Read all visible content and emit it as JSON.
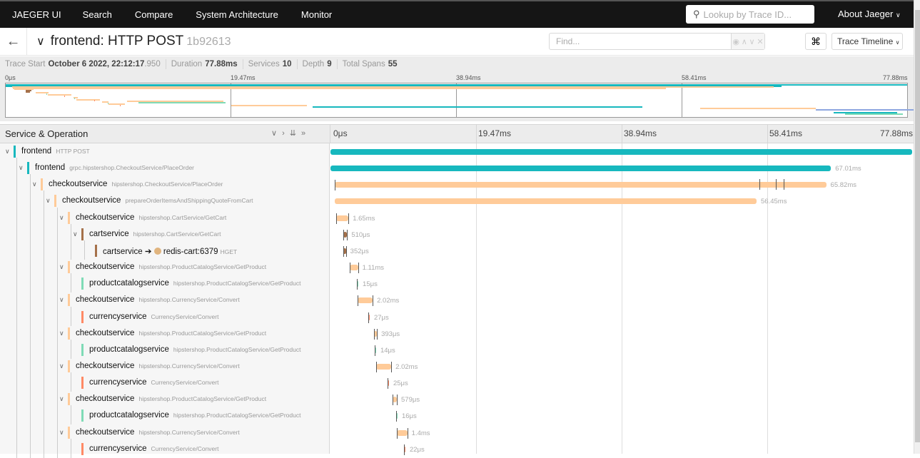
{
  "nav": {
    "brand": "JAEGER UI",
    "items": [
      "Search",
      "Compare",
      "System Architecture",
      "Monitor"
    ],
    "lookup_placeholder": "Lookup by Trace ID...",
    "about": "About Jaeger"
  },
  "trace": {
    "title": "frontend: HTTP POST",
    "trace_id": "1b92613",
    "find_placeholder": "Find...",
    "view_select": "Trace Timeline",
    "start_label": "Trace Start",
    "start_value": "October 6 2022, 22:12:17",
    "start_ms": ".950",
    "duration_label": "Duration",
    "duration": "77.88ms",
    "services_label": "Services",
    "services": "10",
    "depth_label": "Depth",
    "depth": "9",
    "spans_label": "Total Spans",
    "spans": "55"
  },
  "ticks": [
    "0μs",
    "19.47ms",
    "38.94ms",
    "58.41ms",
    "77.88ms"
  ],
  "header": {
    "service_operation": "Service & Operation"
  },
  "colors": {
    "frontend": "#17b8be",
    "checkoutservice": "#ffcb99",
    "cartservice": "#a5714a",
    "productcatalogservice": "#7fdbb6",
    "currencyservice": "#ff8a65"
  },
  "total_ms": 77.88,
  "spans": [
    {
      "service": "frontend",
      "op": "HTTP POST",
      "depth": 0,
      "start": 0,
      "dur": 77.88,
      "label": ""
    },
    {
      "service": "frontend",
      "op": "grpc.hipstershop.CheckoutService/PlaceOrder",
      "depth": 1,
      "start": 0,
      "dur": 67.01,
      "label": "67.01ms"
    },
    {
      "service": "checkoutservice",
      "op": "hipstershop.CheckoutService/PlaceOrder",
      "depth": 2,
      "start": 0.55,
      "dur": 65.82,
      "label": "65.82ms",
      "logs": [
        57.4,
        59.6,
        60.7
      ]
    },
    {
      "service": "checkoutservice",
      "op": "prepareOrderItemsAndShippingQuoteFromCart",
      "depth": 3,
      "start": 0.6,
      "dur": 56.45,
      "label": "56.45ms"
    },
    {
      "service": "checkoutservice",
      "op": "hipstershop.CartService/GetCart",
      "depth": 4,
      "start": 0.76,
      "dur": 1.65,
      "label": "1.65ms"
    },
    {
      "service": "cartservice",
      "op": "hipstershop.CartService/GetCart",
      "depth": 5,
      "start": 1.72,
      "dur": 0.51,
      "label": "510μs"
    },
    {
      "service": "cartservice",
      "peer": "redis-cart:6379",
      "op": "HGET",
      "depth": 6,
      "start": 1.72,
      "dur": 0.352,
      "label": "352μs"
    },
    {
      "service": "checkoutservice",
      "op": "hipstershop.ProductCatalogService/GetProduct",
      "depth": 4,
      "start": 2.58,
      "dur": 1.11,
      "label": "1.11ms"
    },
    {
      "service": "productcatalogservice",
      "op": "hipstershop.ProductCatalogService/GetProduct",
      "depth": 5,
      "start": 3.54,
      "dur": 0.015,
      "label": "15μs"
    },
    {
      "service": "checkoutservice",
      "op": "hipstershop.CurrencyService/Convert",
      "depth": 4,
      "start": 3.63,
      "dur": 2.02,
      "label": "2.02ms"
    },
    {
      "service": "currencyservice",
      "op": "CurrencyService/Convert",
      "depth": 5,
      "start": 5.06,
      "dur": 0.027,
      "label": "27μs"
    },
    {
      "service": "checkoutservice",
      "op": "hipstershop.ProductCatalogService/GetProduct",
      "depth": 4,
      "start": 5.83,
      "dur": 0.393,
      "label": "393μs"
    },
    {
      "service": "productcatalogservice",
      "op": "hipstershop.ProductCatalogService/GetProduct",
      "depth": 5,
      "start": 5.92,
      "dur": 0.014,
      "label": "14μs"
    },
    {
      "service": "checkoutservice",
      "op": "hipstershop.CurrencyService/Convert",
      "depth": 4,
      "start": 6.12,
      "dur": 2.02,
      "label": "2.02ms"
    },
    {
      "service": "currencyservice",
      "op": "CurrencyService/Convert",
      "depth": 5,
      "start": 7.64,
      "dur": 0.025,
      "label": "25μs"
    },
    {
      "service": "checkoutservice",
      "op": "hipstershop.ProductCatalogService/GetProduct",
      "depth": 4,
      "start": 8.31,
      "dur": 0.579,
      "label": "579μs"
    },
    {
      "service": "productcatalogservice",
      "op": "hipstershop.ProductCatalogService/GetProduct",
      "depth": 5,
      "start": 8.79,
      "dur": 0.016,
      "label": "16μs"
    },
    {
      "service": "checkoutservice",
      "op": "hipstershop.CurrencyService/Convert",
      "depth": 4,
      "start": 8.89,
      "dur": 1.4,
      "label": "1.4ms"
    },
    {
      "service": "currencyservice",
      "op": "CurrencyService/Convert",
      "depth": 5,
      "start": 9.84,
      "dur": 0.022,
      "label": "22μs"
    }
  ]
}
